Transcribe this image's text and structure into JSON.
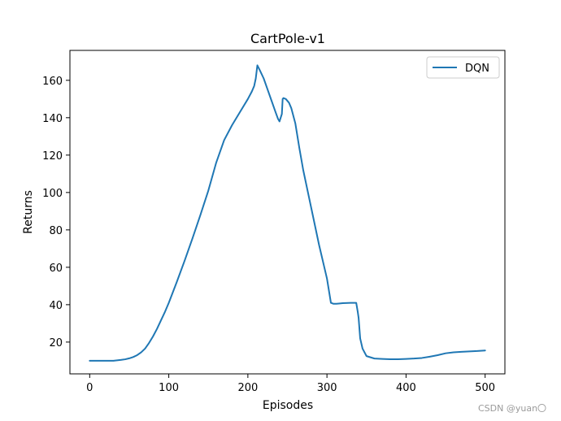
{
  "chart_data": {
    "type": "line",
    "title": "CartPole-v1",
    "xlabel": "Episodes",
    "ylabel": "Returns",
    "xlim": [
      -25,
      525
    ],
    "ylim": [
      3,
      176
    ],
    "xticks": [
      0,
      100,
      200,
      300,
      400,
      500
    ],
    "yticks": [
      20,
      40,
      60,
      80,
      100,
      120,
      140,
      160
    ],
    "grid": false,
    "legend_position": "top-right",
    "series": [
      {
        "name": "DQN",
        "color": "#1f77b4",
        "x": [
          0,
          10,
          20,
          30,
          40,
          45,
          50,
          55,
          60,
          65,
          70,
          75,
          80,
          85,
          90,
          95,
          100,
          110,
          120,
          130,
          140,
          150,
          155,
          160,
          170,
          180,
          190,
          200,
          205,
          208,
          210,
          212,
          215,
          220,
          225,
          230,
          235,
          238,
          240,
          243,
          244,
          245,
          248,
          252,
          255,
          260,
          265,
          270,
          280,
          290,
          300,
          305,
          308,
          310,
          312,
          315,
          320,
          330,
          337,
          339,
          340,
          342,
          345,
          350,
          360,
          370,
          380,
          390,
          400,
          410,
          420,
          430,
          440,
          450,
          460,
          470,
          480,
          490,
          500
        ],
        "y": [
          10,
          10,
          10,
          10,
          10.5,
          10.8,
          11.3,
          12,
          13,
          14.5,
          16.5,
          19.5,
          23,
          27,
          31.5,
          36,
          41,
          52,
          63.5,
          75.5,
          88,
          101,
          108.5,
          116,
          128,
          136,
          143,
          150,
          154,
          157,
          161,
          168,
          165.5,
          161,
          155,
          149,
          143,
          139.5,
          138,
          142,
          150,
          150.5,
          150,
          148,
          145,
          137,
          124,
          112,
          92,
          72,
          54,
          41,
          40.5,
          40.5,
          40.5,
          40.6,
          40.8,
          41,
          41,
          36,
          33,
          22,
          16.5,
          12.5,
          11.2,
          11,
          10.8,
          10.8,
          11,
          11.2,
          11.5,
          12.2,
          13,
          14,
          14.5,
          14.8,
          15,
          15.2,
          15.5
        ]
      }
    ]
  },
  "watermark": "CSDN @yuan〇"
}
